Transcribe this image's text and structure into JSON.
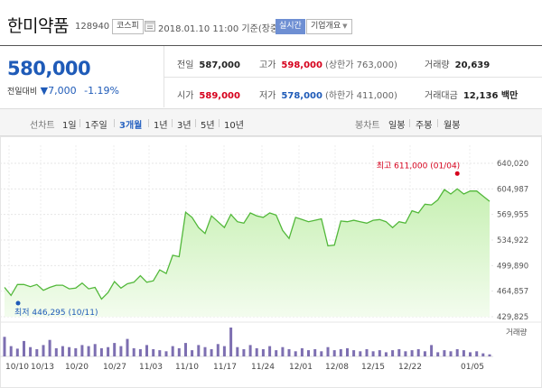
{
  "header": {
    "title": "한미약품",
    "code": "128940",
    "market_badge": "코스피",
    "datetime": "2018.01.10 11:00 기준(장중)",
    "realtime_badge": "실시간",
    "company_button": "기업개요"
  },
  "quote": {
    "price": "580,000",
    "change_label": "전일대비",
    "change_arrow": "▼",
    "change_value": "7,000",
    "change_pct": "-1.19%"
  },
  "stats": {
    "prev_close": {
      "label": "전일",
      "value": "587,000"
    },
    "high": {
      "label": "고가",
      "value": "598,000",
      "sub": "(상한가 763,000)"
    },
    "volume": {
      "label": "거래량",
      "value": "20,639"
    },
    "open": {
      "label": "시가",
      "value": "589,000"
    },
    "low": {
      "label": "저가",
      "value": "578,000",
      "sub": "(하한가 411,000)"
    },
    "amount": {
      "label": "거래대금",
      "value": "12,136 백만"
    }
  },
  "periods": {
    "line_label": "선차트",
    "line_items": [
      "1일",
      "1주일",
      "3개월",
      "1년",
      "3년",
      "5년",
      "10년"
    ],
    "active": "3개월",
    "candle_label": "봉차트",
    "candle_items": [
      "일봉",
      "주봉",
      "월봉"
    ]
  },
  "colors": {
    "accent_blue": "#1f5bb8",
    "up_red": "#d6001c",
    "line_green": "#52b83a",
    "area_green": "#dff7d3",
    "volume_purple": "#7d6fb1",
    "tab_active": "#2c66c2"
  },
  "chart_data": {
    "type": "area",
    "ylim": [
      429825,
      640020
    ],
    "y_ticks": [
      "640,020",
      "604,987",
      "569,955",
      "534,922",
      "499,890",
      "464,857",
      "429,825"
    ],
    "x_tick_labels": [
      "10/10",
      "10/13",
      "10/20",
      "10/27",
      "11/03",
      "11/10",
      "11/17",
      "11/24",
      "12/01",
      "12/08",
      "12/15",
      "12/22",
      "01/05"
    ],
    "max_label": "최고 611,000 (01/04)",
    "min_label": "최저 446,295 (10/11)",
    "volume_label": "거래량",
    "series": [
      {
        "values": [
          470000,
          459000,
          474000,
          474000,
          471000,
          474000,
          466000,
          470000,
          473000,
          473000,
          468000,
          469000,
          476000,
          468000,
          470000,
          454000,
          463000,
          478000,
          469000,
          475000,
          477000,
          486000,
          477000,
          479000,
          494000,
          489000,
          514000,
          512000,
          573000,
          566000,
          552000,
          544000,
          568000,
          560000,
          552000,
          570000,
          560000,
          558000,
          572000,
          568000,
          566000,
          572000,
          569000,
          548000,
          537000,
          566000,
          563000,
          560000,
          562000,
          564000,
          527000,
          528000,
          561000,
          560000,
          562000,
          560000,
          558000,
          562000,
          563000,
          560000,
          552000,
          560000,
          558000,
          575000,
          572000,
          584000,
          583000,
          590000,
          604000,
          598000,
          605000,
          598000,
          602000,
          602000,
          595000,
          588000
        ]
      }
    ],
    "volume": [
      38,
      20,
      15,
      30,
      18,
      14,
      22,
      32,
      16,
      20,
      18,
      16,
      22,
      20,
      24,
      16,
      18,
      26,
      20,
      34,
      16,
      14,
      22,
      14,
      12,
      10,
      20,
      16,
      26,
      12,
      22,
      18,
      14,
      24,
      20,
      56,
      18,
      14,
      22,
      16,
      14,
      20,
      12,
      18,
      14,
      10,
      16,
      12,
      14,
      10,
      18,
      12,
      14,
      16,
      12,
      10,
      14,
      10,
      12,
      8,
      12,
      14,
      10,
      12,
      14,
      10,
      22,
      8,
      12,
      10,
      14,
      12,
      8,
      10,
      6,
      4
    ]
  }
}
